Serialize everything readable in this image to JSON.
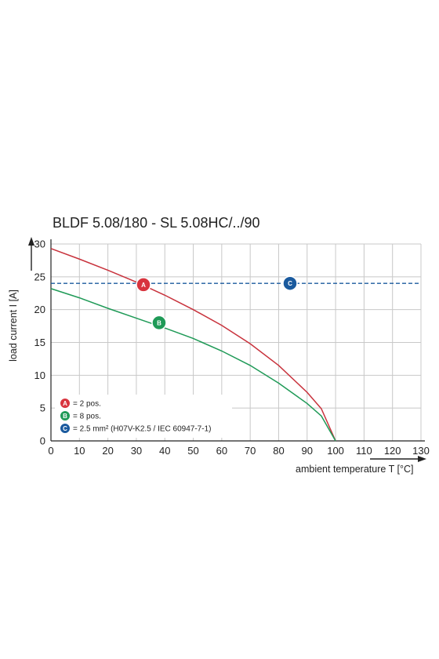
{
  "chart_data": {
    "type": "line",
    "title": "BLDF 5.08/180 - SL 5.08HC/../90",
    "xlabel": "ambient temperature T [°C]",
    "ylabel": "load current I [A]",
    "xlim": [
      0,
      130
    ],
    "ylim": [
      0,
      30
    ],
    "x_ticks": [
      0,
      10,
      20,
      30,
      40,
      50,
      60,
      70,
      80,
      90,
      100,
      110,
      120,
      130
    ],
    "y_ticks": [
      0,
      5,
      10,
      15,
      20,
      25,
      30
    ],
    "grid": true,
    "legend_position": "bottom-left",
    "series": [
      {
        "id": "A",
        "color": "#c8323c",
        "x": [
          0,
          10,
          20,
          30,
          40,
          50,
          60,
          70,
          80,
          90,
          95,
          100
        ],
        "y": [
          29.3,
          27.7,
          26.0,
          24.2,
          22.2,
          20.0,
          17.6,
          14.8,
          11.5,
          7.4,
          4.9,
          0
        ]
      },
      {
        "id": "B",
        "color": "#1f9a57",
        "x": [
          0,
          10,
          20,
          30,
          40,
          50,
          60,
          70,
          80,
          90,
          95,
          100
        ],
        "y": [
          23.2,
          21.8,
          20.2,
          18.7,
          17.2,
          15.6,
          13.7,
          11.5,
          8.8,
          5.7,
          3.8,
          0
        ]
      },
      {
        "id": "C",
        "color": "#1a5a9e",
        "style": "dashed",
        "x": [
          0,
          130
        ],
        "y": [
          24,
          24
        ]
      }
    ],
    "markers": [
      {
        "label": "A",
        "x": 32.5,
        "y": 23.8,
        "color": "#d8343e"
      },
      {
        "label": "B",
        "x": 38.0,
        "y": 18.0,
        "color": "#1f9a57"
      },
      {
        "label": "C",
        "x": 84.0,
        "y": 24.0,
        "color": "#1a5a9e"
      }
    ],
    "legend": [
      {
        "badge": "A",
        "text": "= 2 pos.",
        "color": "#d8343e"
      },
      {
        "badge": "B",
        "text": "= 8 pos.",
        "color": "#1f9a57"
      },
      {
        "badge": "C",
        "text": "= 2.5 mm² (H07V-K2.5 / IEC 60947-7-1)",
        "color": "#1a5a9e"
      }
    ]
  }
}
